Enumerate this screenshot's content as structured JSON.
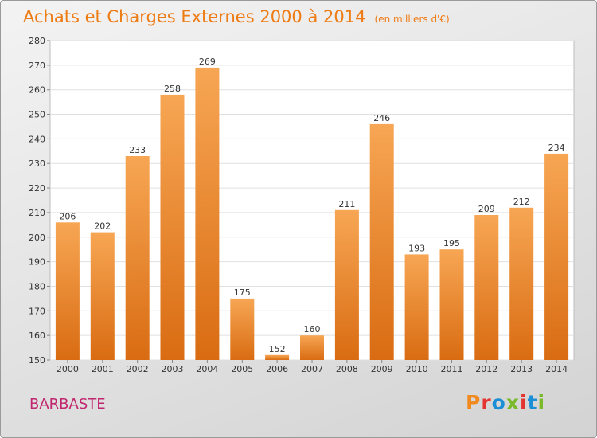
{
  "header": {
    "title": "Achats et Charges Externes 2000 à 2014",
    "subtitle": "(en milliers d'€)"
  },
  "footer": {
    "commune": "BARBASTE",
    "logo_text": "Proxiti",
    "logo_colors": [
      "#f08a1e",
      "#e3342f",
      "#1b8fd6",
      "#7ab929",
      "#e3342f",
      "#1b8fd6",
      "#7ab929"
    ]
  },
  "colors": {
    "bar_top": "#f7a654",
    "bar_bottom": "#d96c12",
    "accent": "#ee7a12",
    "commune": "#c0266e"
  },
  "chart_data": {
    "type": "bar",
    "title": "Achats et Charges Externes 2000 à 2014",
    "subtitle": "(en milliers d'€)",
    "categories": [
      "2000",
      "2001",
      "2002",
      "2003",
      "2004",
      "2005",
      "2006",
      "2007",
      "2008",
      "2009",
      "2010",
      "2011",
      "2012",
      "2013",
      "2014"
    ],
    "values": [
      206,
      202,
      233,
      258,
      269,
      175,
      152,
      160,
      211,
      246,
      193,
      195,
      209,
      212,
      234
    ],
    "ylim": [
      150,
      280
    ],
    "yticks": [
      150,
      160,
      170,
      180,
      190,
      200,
      210,
      220,
      230,
      240,
      250,
      260,
      270,
      280
    ],
    "grid": true,
    "xlabel": "",
    "ylabel": ""
  }
}
